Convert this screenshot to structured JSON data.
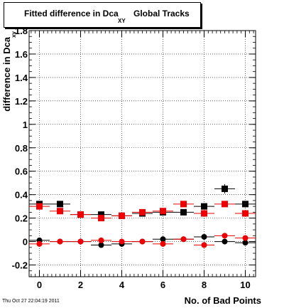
{
  "title": {
    "main": "Fitted difference in Dca",
    "subscript": "XY",
    "tail": "Global Tracks"
  },
  "footer": {
    "date": "Thu Oct 27 22:04:19 2011"
  },
  "chart_data": {
    "type": "scatter",
    "xlabel": "No. of Bad Points",
    "ylabel": "difference in Dca",
    "ylabel_subscript": "xy",
    "xlim": [
      -0.5,
      10.5
    ],
    "ylim": [
      -0.3,
      1.8
    ],
    "xticks": [
      0,
      2,
      4,
      6,
      8,
      10
    ],
    "yticks": [
      -0.2,
      0,
      0.2,
      0.4,
      0.6,
      0.8,
      1,
      1.2,
      1.4,
      1.6,
      1.8
    ],
    "ytick_labels": [
      "-0.2",
      "0",
      "0.2",
      "0.4",
      "0.6",
      "0.8",
      "1",
      "1.2",
      "1.4",
      "1.6",
      "1.8"
    ],
    "grid": true,
    "x_error": 0.5,
    "series": [
      {
        "marker": "square",
        "color": "#000000",
        "x": [
          0,
          1,
          2,
          3,
          4,
          5,
          6,
          7,
          8,
          9,
          10
        ],
        "y": [
          0.32,
          0.32,
          0.23,
          0.23,
          0.22,
          0.24,
          0.25,
          0.25,
          0.3,
          0.45,
          0.32
        ],
        "yerr": [
          0.012,
          0.015,
          0.012,
          0.015,
          0.012,
          0.012,
          0.012,
          0.012,
          0.025,
          0.04,
          0.02
        ]
      },
      {
        "marker": "square",
        "color": "#ee0000",
        "x": [
          0,
          1,
          2,
          3,
          4,
          5,
          6,
          7,
          8,
          9,
          10
        ],
        "y": [
          0.3,
          0.26,
          0.23,
          0.2,
          0.22,
          0.25,
          0.26,
          0.32,
          0.24,
          0.32,
          0.24
        ],
        "yerr": [
          0.012,
          0.012,
          0.012,
          0.015,
          0.012,
          0.012,
          0.012,
          0.015,
          0.015,
          0.02,
          0.02
        ]
      },
      {
        "marker": "circle",
        "color": "#000000",
        "x": [
          0,
          1,
          2,
          3,
          4,
          5,
          6,
          7,
          8,
          9,
          10
        ],
        "y": [
          0.01,
          0.0,
          0.0,
          -0.03,
          -0.02,
          0.0,
          0.02,
          0.02,
          0.04,
          0.0,
          -0.01
        ],
        "yerr": [
          0.01,
          0.01,
          0.01,
          0.01,
          0.01,
          0.01,
          0.01,
          0.01,
          0.012,
          0.015,
          0.015
        ]
      },
      {
        "marker": "circle",
        "color": "#ee0000",
        "x": [
          0,
          1,
          2,
          3,
          4,
          5,
          6,
          7,
          8,
          9,
          10
        ],
        "y": [
          -0.02,
          0.0,
          0.0,
          0.01,
          0.0,
          0.0,
          -0.02,
          0.02,
          -0.03,
          0.05,
          0.03
        ],
        "yerr": [
          0.01,
          0.01,
          0.01,
          0.01,
          0.01,
          0.01,
          0.01,
          0.01,
          0.012,
          0.015,
          0.015
        ]
      }
    ]
  }
}
